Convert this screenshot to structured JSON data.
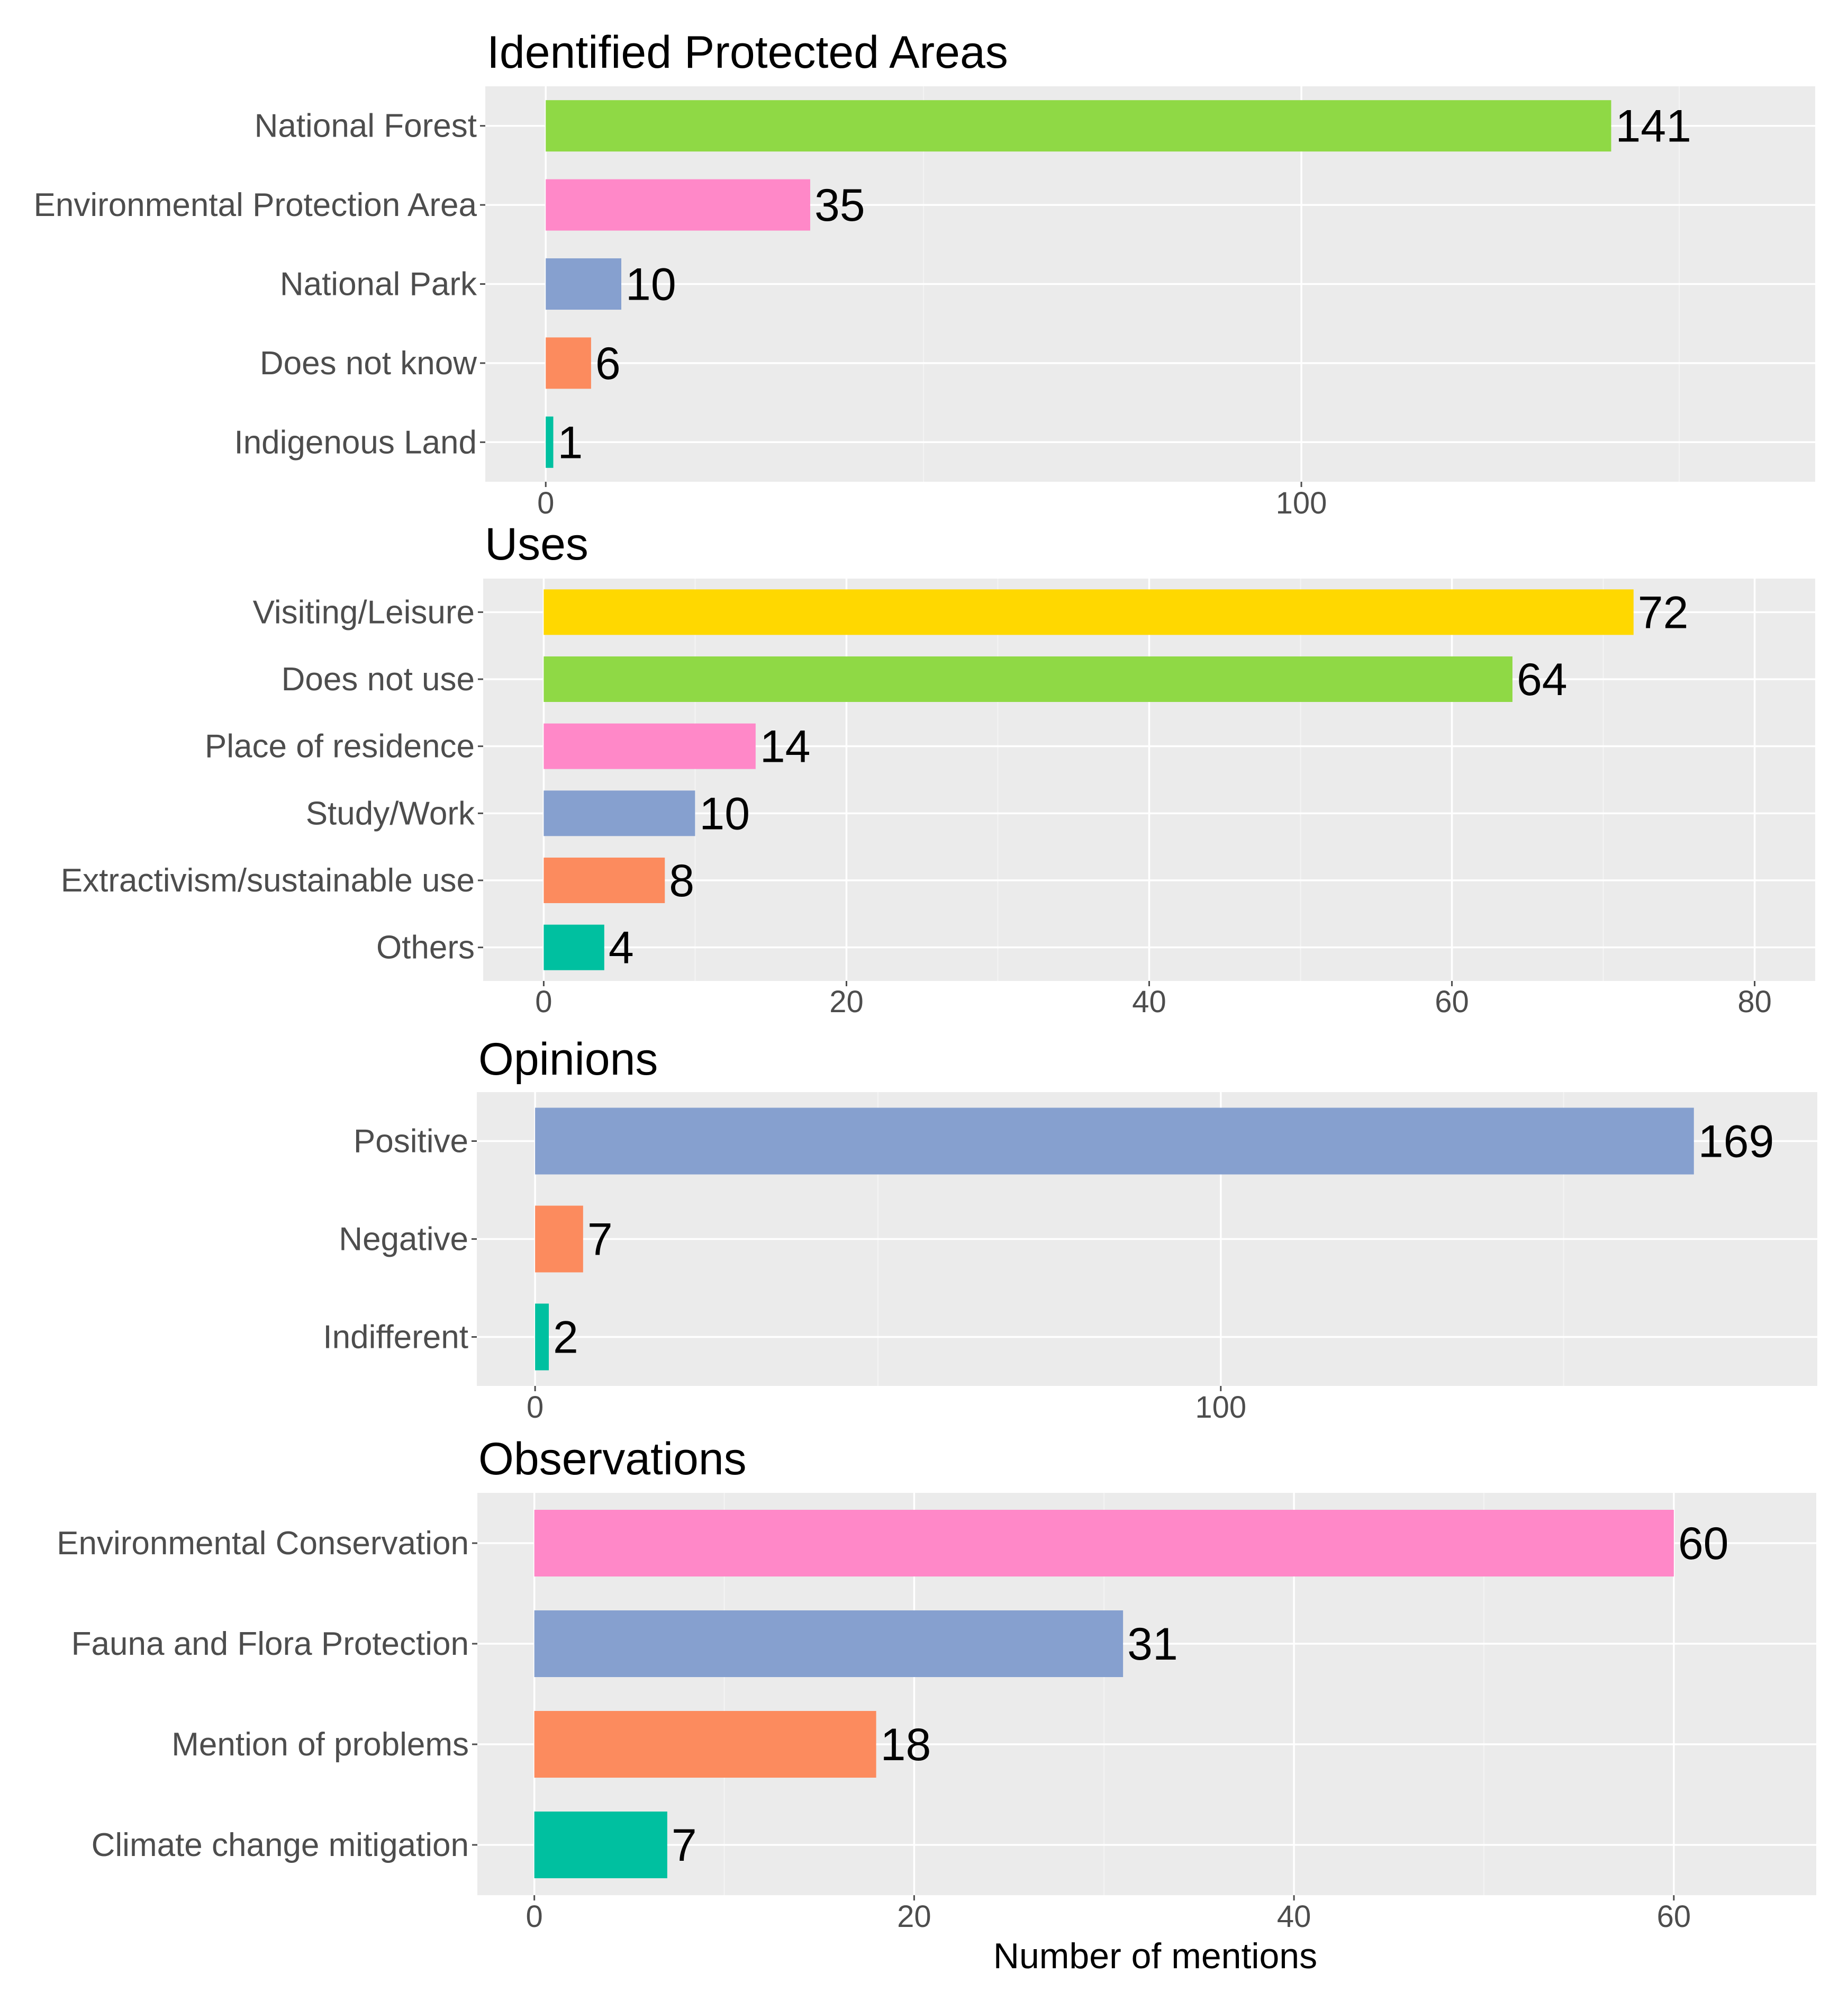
{
  "chart_data": [
    {
      "type": "bar",
      "orientation": "horizontal",
      "title": "Identified Protected Areas",
      "categories": [
        "National Forest",
        "Environmental Protection Area",
        "National Park",
        "Does not know",
        "Indigenous Land"
      ],
      "values": [
        141,
        35,
        10,
        6,
        1
      ],
      "colors": [
        "#8fd945",
        "#ff88c8",
        "#86a0cf",
        "#fc8b5e",
        "#00c0a0"
      ],
      "xlim": [
        -8,
        168
      ],
      "xticks": [
        0,
        100
      ],
      "xtick_labels": [
        "0",
        "100"
      ],
      "xlabel": "",
      "ylabel": "",
      "grid": true,
      "legend": "none"
    },
    {
      "type": "bar",
      "orientation": "horizontal",
      "title": "Uses",
      "categories": [
        "Visiting/Leisure",
        "Does not use",
        "Place of residence",
        "Study/Work",
        "Extractivism/sustainable use",
        "Others"
      ],
      "values": [
        72,
        64,
        14,
        10,
        8,
        4
      ],
      "colors": [
        "#ffd800",
        "#8fd945",
        "#ff88c8",
        "#86a0cf",
        "#fc8b5e",
        "#00c0a0"
      ],
      "xlim": [
        -4,
        84
      ],
      "xticks": [
        0,
        20,
        40,
        60,
        80
      ],
      "xtick_labels": [
        "0",
        "20",
        "40",
        "60",
        "80"
      ],
      "xlabel": "",
      "ylabel": "",
      "grid": true,
      "legend": "none"
    },
    {
      "type": "bar",
      "orientation": "horizontal",
      "title": "Opinions",
      "categories": [
        "Positive",
        "Negative",
        "Indifferent"
      ],
      "values": [
        169,
        7,
        2
      ],
      "colors": [
        "#86a0cf",
        "#fc8b5e",
        "#00c0a0"
      ],
      "xlim": [
        -8.5,
        187
      ],
      "xticks": [
        0,
        100
      ],
      "xtick_labels": [
        "0",
        "100"
      ],
      "xlabel": "",
      "ylabel": "",
      "grid": true,
      "legend": "none"
    },
    {
      "type": "bar",
      "orientation": "horizontal",
      "title": "Observations",
      "categories": [
        "Environmental Conservation",
        "Fauna and Flora Protection",
        "Mention of problems",
        "Climate change mitigation"
      ],
      "values": [
        60,
        31,
        18,
        7
      ],
      "colors": [
        "#ff88c8",
        "#86a0cf",
        "#fc8b5e",
        "#00c0a0"
      ],
      "xlim": [
        -3,
        67.5
      ],
      "xticks": [
        0,
        20,
        40,
        60
      ],
      "xtick_labels": [
        "0",
        "20",
        "40",
        "60"
      ],
      "xlabel": "Number of mentions",
      "ylabel": "",
      "grid": true,
      "legend": "none"
    }
  ]
}
